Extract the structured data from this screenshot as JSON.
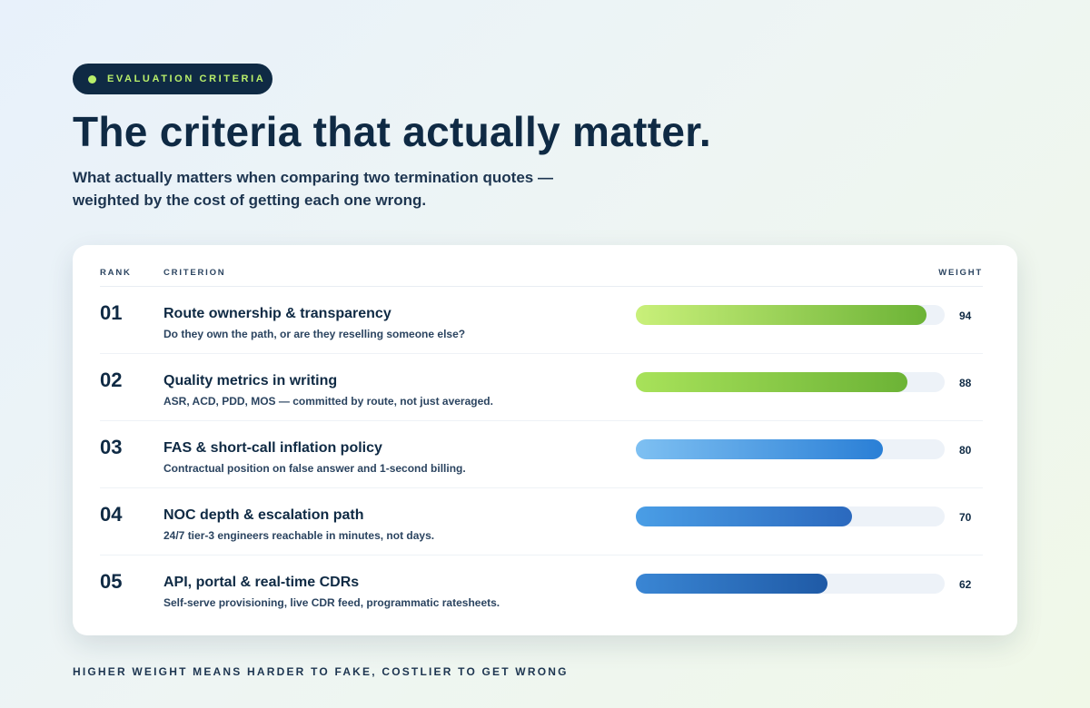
{
  "badge": {
    "label": "EVALUATION CRITERIA",
    "dot_color": "#b9ef6a"
  },
  "title": "The criteria that actually matter.",
  "subtitle": "What actually matters when comparing two termination quotes — weighted by the cost of getting each one wrong.",
  "table": {
    "headers": {
      "rank": "RANK",
      "criterion": "CRITERION",
      "weight": "WEIGHT"
    },
    "rows": [
      {
        "rank": "01",
        "title": "Route ownership & transparency",
        "description": "Do they own the path, or are they reselling someone else?",
        "weight": "94",
        "weight_fraction": 0.94,
        "gradient": [
          "#c9f07a",
          "#6cb336"
        ]
      },
      {
        "rank": "02",
        "title": "Quality metrics in writing",
        "description": "ASR, ACD, PDD, MOS — committed by route, not just averaged.",
        "weight": "88",
        "weight_fraction": 0.88,
        "gradient": [
          "#a8e25a",
          "#6cb336"
        ]
      },
      {
        "rank": "03",
        "title": "FAS & short-call inflation policy",
        "description": "Contractual position on false answer and 1-second billing.",
        "weight": "80",
        "weight_fraction": 0.8,
        "gradient": [
          "#7ec0f2",
          "#2a7fd6"
        ]
      },
      {
        "rank": "04",
        "title": "NOC depth & escalation path",
        "description": "24/7 tier-3 engineers reachable in minutes, not days.",
        "weight": "70",
        "weight_fraction": 0.7,
        "gradient": [
          "#4a9ee6",
          "#2b69be"
        ]
      },
      {
        "rank": "05",
        "title": "API, portal & real-time CDRs",
        "description": "Self-serve provisioning, live CDR feed, programmatic ratesheets.",
        "weight": "62",
        "weight_fraction": 0.62,
        "gradient": [
          "#3a86d4",
          "#1f5aa6"
        ]
      }
    ]
  },
  "footer": "HIGHER WEIGHT MEANS HARDER TO FAKE, COSTLIER TO GET WRONG",
  "colors": {
    "ink": "#0f2a44",
    "badge_bg": "#0f2a44",
    "track": "#edf2f8"
  }
}
